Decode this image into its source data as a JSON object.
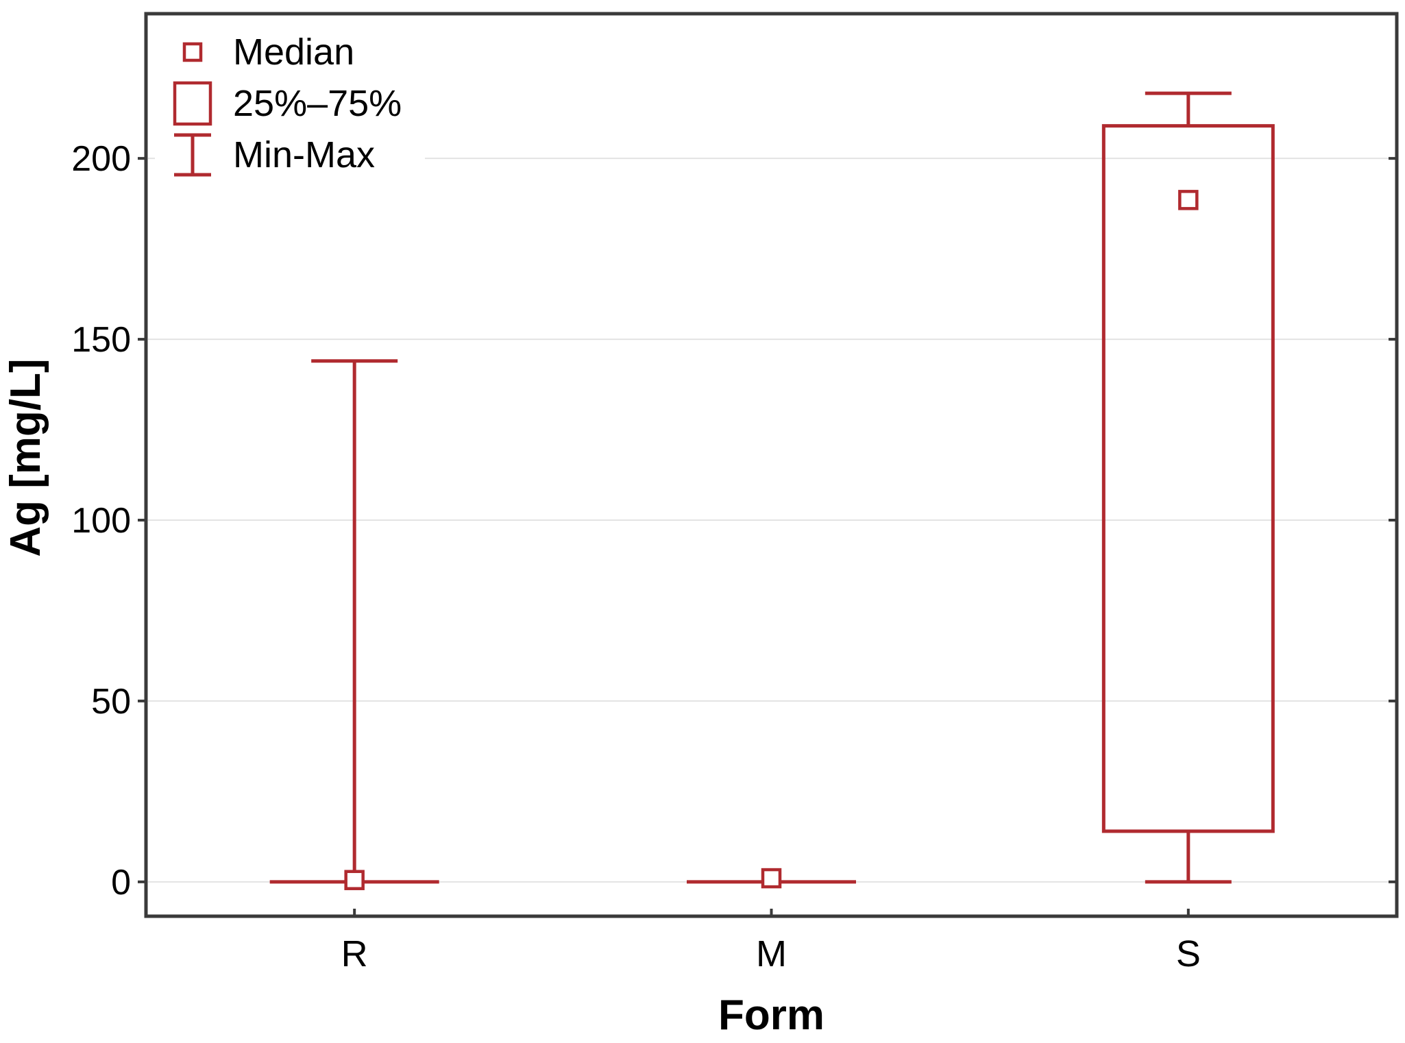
{
  "colors": {
    "series": "#b02a2f",
    "frame": "#3a3a3a",
    "grid": "#e3e3e3",
    "text": "#000000",
    "marker_fill": "#ffffff",
    "background": "#ffffff"
  },
  "y_axis": {
    "label": "Ag [mg/L]",
    "tick_labels": [
      "0",
      "50",
      "100",
      "150",
      "200"
    ]
  },
  "x_axis": {
    "label": "Form",
    "categories": [
      "R",
      "M",
      "S"
    ]
  },
  "legend": {
    "items": [
      {
        "symbol": "median-marker",
        "label": "Median"
      },
      {
        "symbol": "box-25-75",
        "label": "25%–75%"
      },
      {
        "symbol": "min-max-whisker",
        "label": "Min-Max"
      }
    ]
  },
  "chart_data": {
    "type": "boxplot",
    "title": "",
    "xlabel": "Form",
    "ylabel": "Ag [mg/L]",
    "categories": [
      "R",
      "M",
      "S"
    ],
    "ylim": [
      -9.5,
      240
    ],
    "yticks": [
      0,
      50,
      100,
      150,
      200
    ],
    "grid": "horizontal",
    "legend_position": "top-left-inside",
    "legend_entries": [
      "Median",
      "25%–75%",
      "Min-Max"
    ],
    "boxes": [
      {
        "category": "R",
        "min": 0,
        "q1": 0,
        "median": 0.5,
        "q3": 0,
        "max": 144
      },
      {
        "category": "M",
        "min": 0,
        "q1": 0,
        "median": 1,
        "q3": 0,
        "max": 0
      },
      {
        "category": "S",
        "min": 0,
        "q1": 14,
        "median": 188.5,
        "q3": 209,
        "max": 218
      }
    ]
  }
}
